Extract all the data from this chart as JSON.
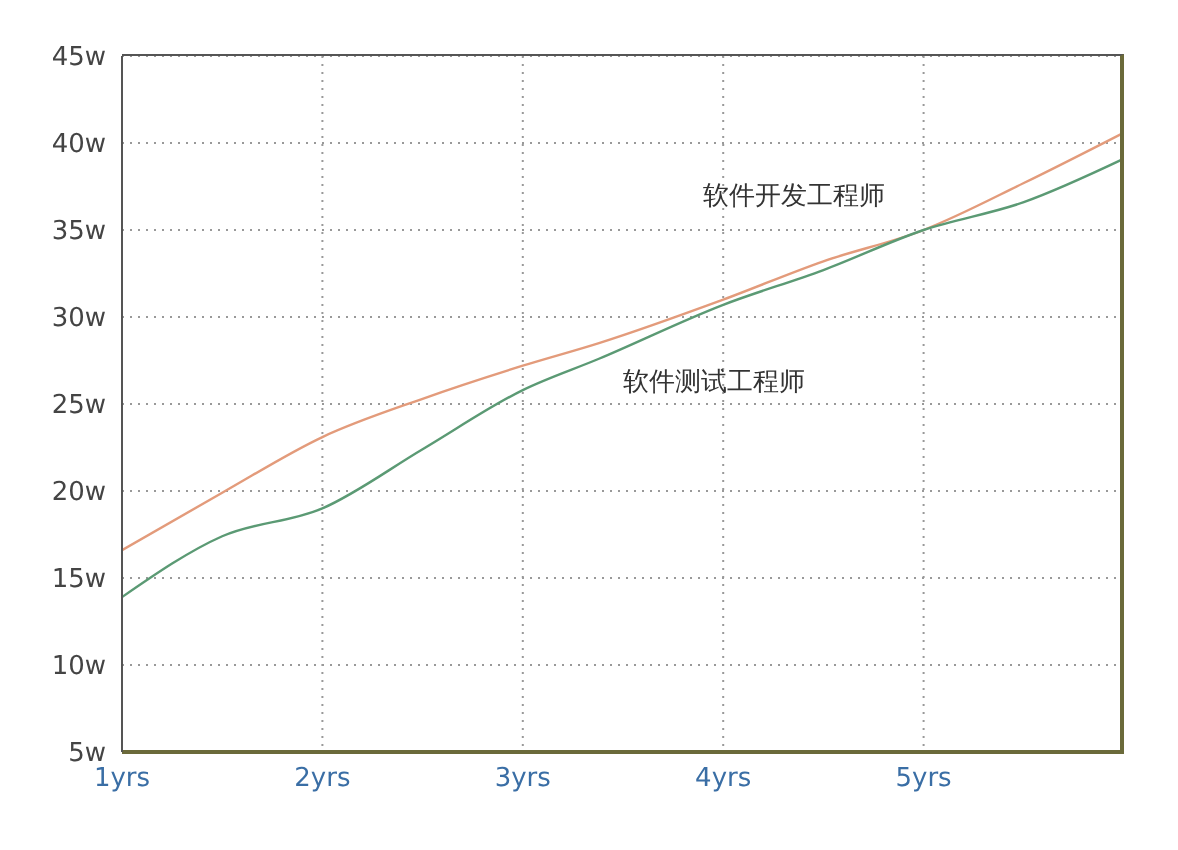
{
  "chart_data": {
    "type": "line",
    "x": [
      1,
      1.5,
      2,
      2.5,
      3,
      3.38,
      4,
      4.5,
      5,
      5.5,
      6
    ],
    "series": [
      {
        "name": "软件开发工程师",
        "color": "#e39b7b",
        "values": [
          16.6,
          19.9,
          23.1,
          25.3,
          27.2,
          28.5,
          31.0,
          33.2,
          35.0,
          37.7,
          40.6
        ]
      },
      {
        "name": "软件测试工程师",
        "color": "#5b9a74",
        "values": [
          13.9,
          17.4,
          19.0,
          22.4,
          25.8,
          27.6,
          30.7,
          32.7,
          35.0,
          36.6,
          39.1
        ]
      }
    ],
    "xlim": [
      1,
      6
    ],
    "xticks": [
      {
        "value": 1,
        "label": "1yrs"
      },
      {
        "value": 2,
        "label": "2yrs"
      },
      {
        "value": 3,
        "label": "3yrs"
      },
      {
        "value": 4,
        "label": "4yrs"
      },
      {
        "value": 5,
        "label": "5yrs"
      }
    ],
    "ylim": [
      5,
      45
    ],
    "yticks": [
      {
        "value": 5,
        "label": "5w"
      },
      {
        "value": 10,
        "label": "10w"
      },
      {
        "value": 15,
        "label": "15w"
      },
      {
        "value": 20,
        "label": "20w"
      },
      {
        "value": 25,
        "label": "25w"
      },
      {
        "value": 30,
        "label": "30w"
      },
      {
        "value": 35,
        "label": "35w"
      },
      {
        "value": 40,
        "label": "40w"
      },
      {
        "value": 45,
        "label": "45w"
      }
    ],
    "grid": true,
    "marker": "none",
    "line_style": "solid",
    "legend": false
  }
}
